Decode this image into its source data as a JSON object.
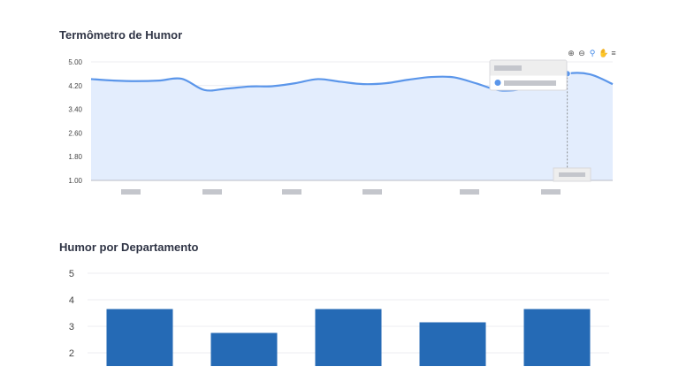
{
  "charts": {
    "mood_title": "Termômetro de Humor",
    "dept_title": "Humor por Departamento"
  },
  "toolbar": {
    "icons": [
      "zoom-in-icon",
      "zoom-out-icon",
      "magnify-icon",
      "pan-hand-icon",
      "menu-icon"
    ]
  },
  "colors": {
    "line": "#5b96ea",
    "area": "#e3edfd",
    "bar": "#256ab5",
    "placeholder": "#c4c6cc"
  },
  "chart_data": [
    {
      "type": "area",
      "title": "Termômetro de Humor",
      "ylim": [
        1.0,
        5.0
      ],
      "yticks": [
        "5.00",
        "4.20",
        "3.40",
        "2.60",
        "1.80",
        "1.00"
      ],
      "x_label_count": 6,
      "values": [
        4.42,
        4.37,
        4.35,
        4.37,
        4.43,
        4.05,
        4.1,
        4.17,
        4.18,
        4.28,
        4.42,
        4.33,
        4.25,
        4.28,
        4.4,
        4.49,
        4.48,
        4.27,
        4.04,
        4.08,
        4.3,
        4.6,
        4.58,
        4.25
      ],
      "highlight_index": 21,
      "legend": "none",
      "grid": true
    },
    {
      "type": "bar",
      "title": "Humor por Departamento",
      "ylim": [
        1.5,
        5.0
      ],
      "yticks": [
        "5",
        "4",
        "3",
        "2"
      ],
      "values": [
        3.65,
        2.75,
        3.65,
        3.15,
        3.65
      ],
      "grid": true
    }
  ]
}
